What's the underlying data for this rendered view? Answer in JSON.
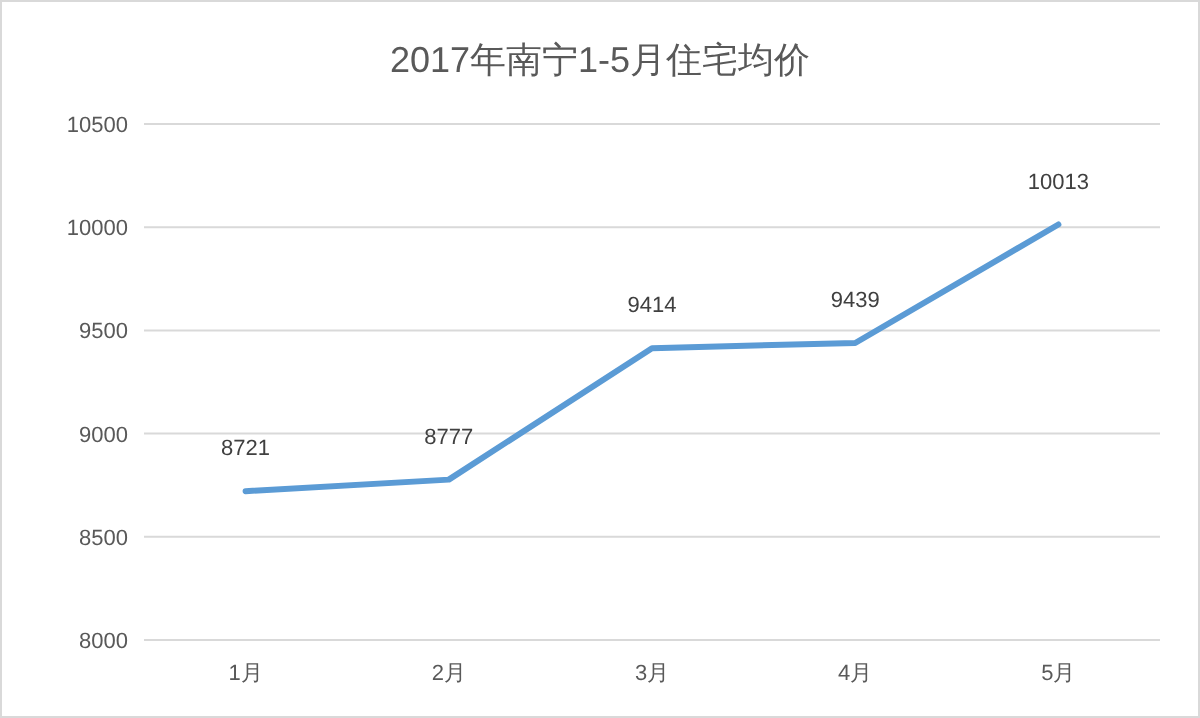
{
  "chart_data": {
    "type": "line",
    "title": "2017年南宁1-5月住宅均价",
    "categories": [
      "1月",
      "2月",
      "3月",
      "4月",
      "5月"
    ],
    "series": [
      {
        "color": "#5b9bd5",
        "values": [
          8721,
          8777,
          9414,
          9439,
          10013
        ]
      }
    ],
    "ylim": [
      8000,
      10500
    ],
    "yticks": [
      8000,
      8500,
      9000,
      9500,
      10000,
      10500
    ],
    "grid": "y",
    "data_labels": true
  }
}
